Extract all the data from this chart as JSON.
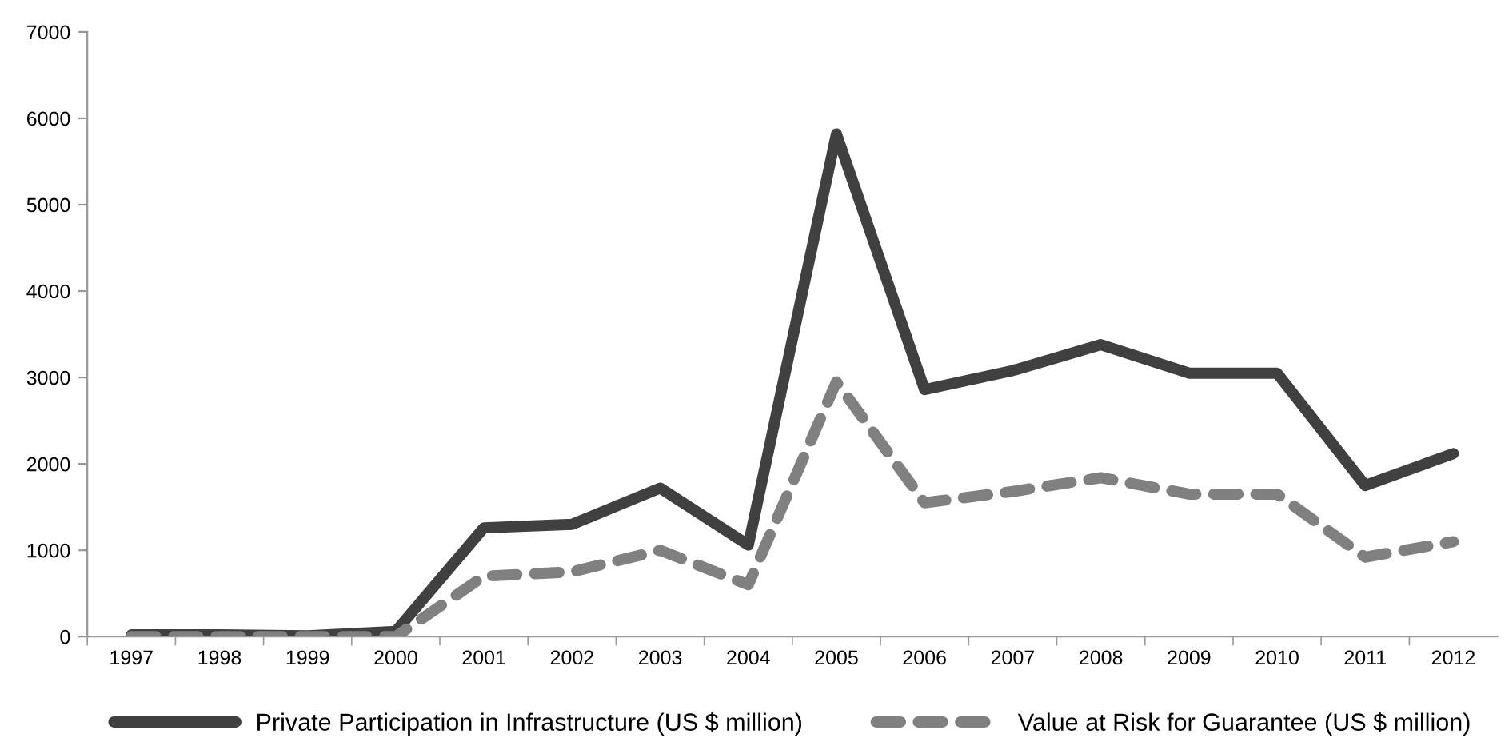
{
  "chart_data": {
    "type": "line",
    "categories": [
      "1997",
      "1998",
      "1999",
      "2000",
      "2001",
      "2002",
      "2003",
      "2004",
      "2005",
      "2006",
      "2007",
      "2008",
      "2009",
      "2010",
      "2011",
      "2012"
    ],
    "series": [
      {
        "name": "Private Participation in Infrastructure (US $ million)",
        "color": "#404040",
        "line_style": "solid",
        "values": [
          20,
          20,
          10,
          60,
          1260,
          1300,
          1720,
          1060,
          5820,
          2860,
          3080,
          3380,
          3050,
          3050,
          1750,
          2120
        ]
      },
      {
        "name": "Value at Risk for Guarantee (US $ million)",
        "color": "#808080",
        "line_style": "dashed",
        "values": [
          0,
          0,
          0,
          0,
          700,
          750,
          1000,
          600,
          2950,
          1550,
          1680,
          1840,
          1650,
          1650,
          920,
          1100
        ]
      }
    ],
    "ylim": [
      0,
      7000
    ],
    "yticks": [
      0,
      1000,
      2000,
      3000,
      4000,
      5000,
      6000,
      7000
    ],
    "grid": false,
    "legend": "bottom",
    "marker": "none"
  }
}
